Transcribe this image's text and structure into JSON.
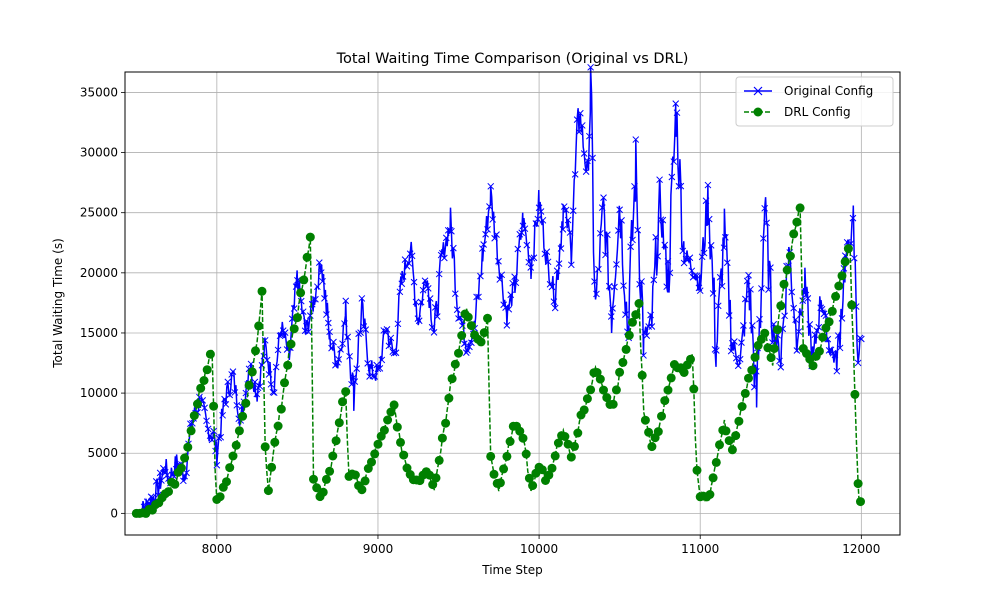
{
  "chart_data": {
    "type": "line",
    "title": "Total Waiting Time Comparison (Original vs DRL)",
    "xlabel": "Time Step",
    "ylabel": "Total Waiting Time (s)",
    "xlim": [
      7430,
      12240
    ],
    "ylim": [
      -1800,
      36700
    ],
    "xticks": [
      8000,
      9000,
      10000,
      11000,
      12000
    ],
    "yticks": [
      0,
      5000,
      10000,
      15000,
      20000,
      25000,
      30000,
      35000
    ],
    "grid": true,
    "legend_position": "upper-right",
    "colors": {
      "original": "#0000ff",
      "drl": "#008000"
    },
    "series": [
      {
        "name": "Original Config",
        "style": "solid-line-x-markers",
        "points": [
          [
            7500,
            0
          ],
          [
            7550,
            400
          ],
          [
            7600,
            1200
          ],
          [
            7650,
            2600
          ],
          [
            7680,
            4000
          ],
          [
            7700,
            2800
          ],
          [
            7750,
            4200
          ],
          [
            7800,
            3200
          ],
          [
            7850,
            7800
          ],
          [
            7900,
            9500
          ],
          [
            7940,
            7000
          ],
          [
            7980,
            6500
          ],
          [
            8000,
            5000
          ],
          [
            8050,
            9500
          ],
          [
            8100,
            11500
          ],
          [
            8150,
            7500
          ],
          [
            8200,
            12500
          ],
          [
            8250,
            10000
          ],
          [
            8300,
            14000
          ],
          [
            8350,
            10500
          ],
          [
            8400,
            15500
          ],
          [
            8450,
            13000
          ],
          [
            8500,
            19500
          ],
          [
            8550,
            15000
          ],
          [
            8600,
            17500
          ],
          [
            8650,
            21000
          ],
          [
            8700,
            14500
          ],
          [
            8750,
            12500
          ],
          [
            8800,
            16500
          ],
          [
            8850,
            10000
          ],
          [
            8900,
            17000
          ],
          [
            8950,
            12000
          ],
          [
            9000,
            11500
          ],
          [
            9050,
            15500
          ],
          [
            9100,
            13000
          ],
          [
            9150,
            19500
          ],
          [
            9200,
            22000
          ],
          [
            9250,
            16000
          ],
          [
            9300,
            20000
          ],
          [
            9350,
            15000
          ],
          [
            9400,
            21500
          ],
          [
            9450,
            24000
          ],
          [
            9500,
            17000
          ],
          [
            9550,
            14000
          ],
          [
            9600,
            15500
          ],
          [
            9650,
            21500
          ],
          [
            9700,
            26500
          ],
          [
            9750,
            21000
          ],
          [
            9800,
            16500
          ],
          [
            9850,
            19000
          ],
          [
            9900,
            24500
          ],
          [
            9950,
            20500
          ],
          [
            10000,
            26000
          ],
          [
            10050,
            21000
          ],
          [
            10100,
            18000
          ],
          [
            10150,
            25500
          ],
          [
            10200,
            22500
          ],
          [
            10250,
            33500
          ],
          [
            10300,
            28000
          ],
          [
            10320,
            34500
          ],
          [
            10350,
            17000
          ],
          [
            10400,
            25500
          ],
          [
            10450,
            16500
          ],
          [
            10500,
            26000
          ],
          [
            10550,
            15500
          ],
          [
            10600,
            28500
          ],
          [
            10650,
            14500
          ],
          [
            10700,
            16000
          ],
          [
            10750,
            26000
          ],
          [
            10800,
            19000
          ],
          [
            10850,
            33500
          ],
          [
            10900,
            21500
          ],
          [
            10950,
            20500
          ],
          [
            11000,
            19000
          ],
          [
            11050,
            26500
          ],
          [
            11100,
            13500
          ],
          [
            11150,
            23500
          ],
          [
            11200,
            14000
          ],
          [
            11250,
            12500
          ],
          [
            11300,
            19500
          ],
          [
            11350,
            9500
          ],
          [
            11400,
            25500
          ],
          [
            11450,
            15500
          ],
          [
            11500,
            13000
          ],
          [
            11550,
            22000
          ],
          [
            11600,
            14500
          ],
          [
            11650,
            19000
          ],
          [
            11700,
            12500
          ],
          [
            11750,
            18000
          ],
          [
            11800,
            14000
          ],
          [
            11850,
            12500
          ],
          [
            11900,
            21000
          ],
          [
            11950,
            24000
          ],
          [
            11980,
            13000
          ],
          [
            12000,
            14500
          ]
        ]
      },
      {
        "name": "DRL Config",
        "style": "dashed-line-circle-markers",
        "points": [
          [
            7500,
            0
          ],
          [
            7550,
            100
          ],
          [
            7600,
            400
          ],
          [
            7650,
            1000
          ],
          [
            7700,
            2000
          ],
          [
            7750,
            2800
          ],
          [
            7800,
            4500
          ],
          [
            7850,
            7500
          ],
          [
            7900,
            10500
          ],
          [
            7950,
            12500
          ],
          [
            7970,
            14000
          ],
          [
            7990,
            3500
          ],
          [
            8000,
            1000
          ],
          [
            8050,
            2500
          ],
          [
            8100,
            4500
          ],
          [
            8150,
            7500
          ],
          [
            8200,
            10500
          ],
          [
            8250,
            14000
          ],
          [
            8280,
            18000
          ],
          [
            8300,
            5500
          ],
          [
            8320,
            2000
          ],
          [
            8350,
            5000
          ],
          [
            8400,
            9000
          ],
          [
            8450,
            13500
          ],
          [
            8500,
            16500
          ],
          [
            8550,
            20500
          ],
          [
            8580,
            22500
          ],
          [
            8600,
            3000
          ],
          [
            8650,
            1300
          ],
          [
            8700,
            3500
          ],
          [
            8750,
            7000
          ],
          [
            8800,
            10500
          ],
          [
            8820,
            3000
          ],
          [
            8850,
            3500
          ],
          [
            8900,
            2000
          ],
          [
            8950,
            4000
          ],
          [
            9000,
            6000
          ],
          [
            9050,
            7500
          ],
          [
            9100,
            9000
          ],
          [
            9150,
            5000
          ],
          [
            9200,
            3000
          ],
          [
            9250,
            2500
          ],
          [
            9300,
            3500
          ],
          [
            9350,
            2000
          ],
          [
            9400,
            6000
          ],
          [
            9450,
            10500
          ],
          [
            9500,
            13500
          ],
          [
            9550,
            17000
          ],
          [
            9600,
            15000
          ],
          [
            9650,
            14000
          ],
          [
            9680,
            16500
          ],
          [
            9700,
            4500
          ],
          [
            9750,
            2000
          ],
          [
            9800,
            5000
          ],
          [
            9850,
            7500
          ],
          [
            9900,
            6500
          ],
          [
            9950,
            2000
          ],
          [
            10000,
            4000
          ],
          [
            10050,
            2500
          ],
          [
            10100,
            5000
          ],
          [
            10150,
            7000
          ],
          [
            10200,
            4500
          ],
          [
            10250,
            7500
          ],
          [
            10300,
            9500
          ],
          [
            10350,
            12000
          ],
          [
            10400,
            10500
          ],
          [
            10450,
            8500
          ],
          [
            10500,
            11500
          ],
          [
            10550,
            14500
          ],
          [
            10600,
            16500
          ],
          [
            10620,
            17500
          ],
          [
            10650,
            8500
          ],
          [
            10700,
            5500
          ],
          [
            10750,
            7500
          ],
          [
            10800,
            10500
          ],
          [
            10850,
            12500
          ],
          [
            10900,
            11500
          ],
          [
            10950,
            13500
          ],
          [
            10980,
            3500
          ],
          [
            11000,
            1500
          ],
          [
            11050,
            1200
          ],
          [
            11100,
            4500
          ],
          [
            11150,
            7500
          ],
          [
            11200,
            5500
          ],
          [
            11250,
            8500
          ],
          [
            11300,
            11000
          ],
          [
            11350,
            13500
          ],
          [
            11400,
            15000
          ],
          [
            11450,
            12500
          ],
          [
            11500,
            17500
          ],
          [
            11550,
            21000
          ],
          [
            11600,
            24500
          ],
          [
            11620,
            25500
          ],
          [
            11640,
            14000
          ],
          [
            11700,
            12000
          ],
          [
            11750,
            14000
          ],
          [
            11800,
            16000
          ],
          [
            11850,
            18500
          ],
          [
            11900,
            21000
          ],
          [
            11930,
            22500
          ],
          [
            11950,
            13500
          ],
          [
            11970,
            6000
          ],
          [
            11985,
            1000
          ],
          [
            12000,
            1200
          ]
        ]
      }
    ]
  }
}
